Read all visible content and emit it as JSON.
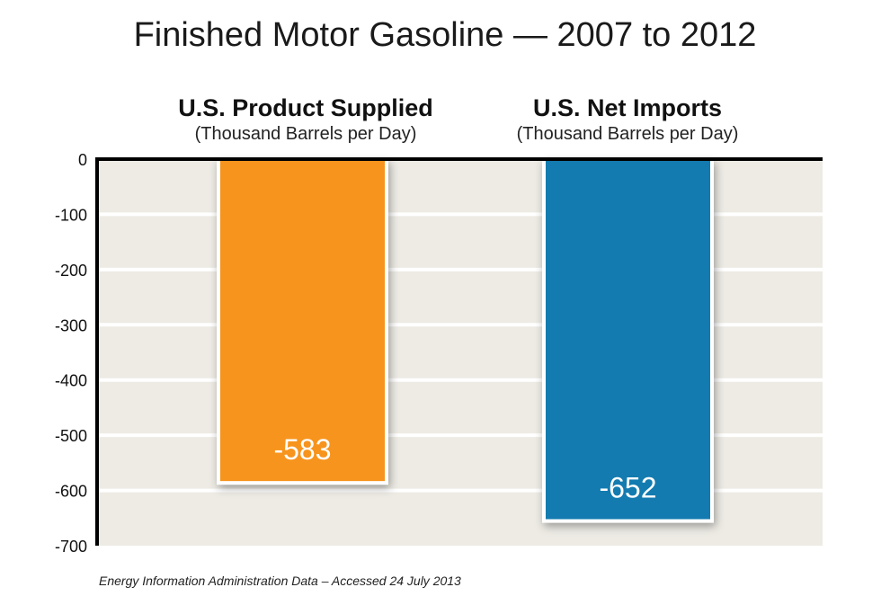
{
  "chart_data": {
    "type": "bar",
    "title": "Finished Motor Gasoline — 2007 to 2012",
    "categories": [
      "U.S. Product Supplied",
      "U.S. Net Imports"
    ],
    "category_units": [
      "(Thousand Barrels per Day)",
      "(Thousand Barrels per Day)"
    ],
    "values": [
      -583,
      -652
    ],
    "data_labels": [
      "-583",
      "-652"
    ],
    "colors": [
      "#f7941d",
      "#137bb0"
    ],
    "xlabel": "",
    "ylabel": "",
    "ylim": [
      -700,
      0
    ],
    "yticks": [
      0,
      -100,
      -200,
      -300,
      -400,
      -500,
      -600,
      -700
    ],
    "ytick_labels": [
      "0",
      "-100",
      "-200",
      "-300",
      "-400",
      "-500",
      "-600",
      "-700"
    ],
    "grid": true,
    "legend": "none",
    "plot_background": "#edebe4",
    "source_note": "Energy Information Administration Data – Accessed 24 July 2013"
  }
}
